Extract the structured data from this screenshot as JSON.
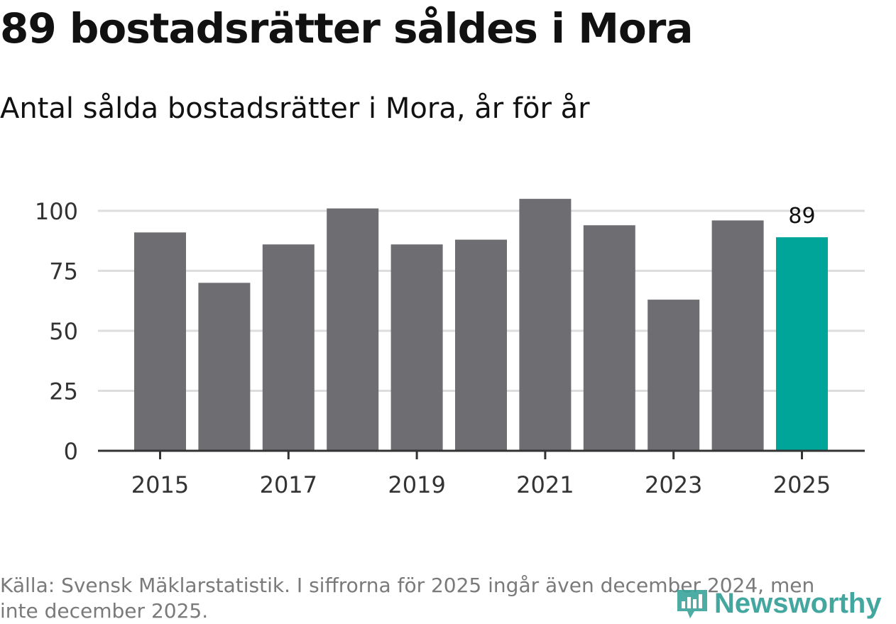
{
  "title": "89 bostadsrätter såldes i Mora",
  "subtitle": "Antal sålda bostadsrätter i Mora, år för år",
  "footnote": "Källa: Svensk Mäklarstatistik. I siffrorna för 2025 ingår även december 2024, men inte december 2025.",
  "logo": {
    "text": "Newsworthy",
    "icon": "newsworthy-logo-icon"
  },
  "colors": {
    "bar": "#6e6d72",
    "highlight": "#00a599",
    "grid": "#dddddd",
    "axis": "#333333",
    "label": "#333333"
  },
  "chart_data": {
    "type": "bar",
    "title": "89 bostadsrätter såldes i Mora",
    "subtitle": "Antal sålda bostadsrätter i Mora, år för år",
    "xlabel": "",
    "ylabel": "",
    "categories": [
      "2015",
      "2016",
      "2017",
      "2018",
      "2019",
      "2020",
      "2021",
      "2022",
      "2023",
      "2024",
      "2025"
    ],
    "values": [
      91,
      70,
      86,
      101,
      86,
      88,
      105,
      94,
      63,
      96,
      89
    ],
    "highlight_index": 10,
    "value_label": "89",
    "x_tick_labels": [
      "2015",
      "2017",
      "2019",
      "2021",
      "2023",
      "2025"
    ],
    "y_ticks": [
      0,
      25,
      50,
      75,
      100
    ],
    "ylim": [
      0,
      110
    ],
    "grid": true,
    "legend": "none"
  }
}
